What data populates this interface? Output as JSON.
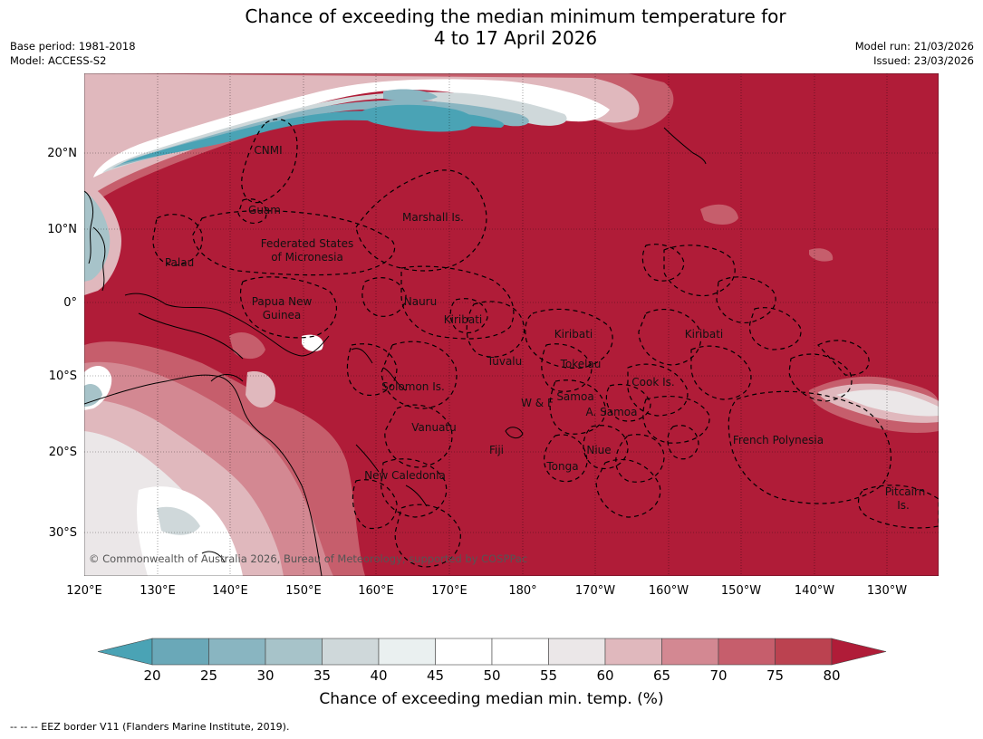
{
  "title_line1": "Chance of exceeding the median minimum temperature for",
  "title_line2": "4 to 17 April 2026",
  "base_period": "Base period: 1981-2018",
  "model": "Model: ACCESS-S2",
  "model_run": "Model run: 21/03/2026",
  "issued": "Issued: 23/03/2026",
  "copyright": "© Commonwealth of Australia 2026, Bureau of Meteorology, supported by COSPPac",
  "lat_labels": [
    "20°N",
    "10°N",
    "0°",
    "10°S",
    "20°S",
    "30°S"
  ],
  "lon_labels": [
    "120°E",
    "130°E",
    "140°E",
    "150°E",
    "160°E",
    "170°E",
    "180°",
    "170°W",
    "160°W",
    "150°W",
    "140°W",
    "130°W"
  ],
  "regions": [
    {
      "id": "cnmi",
      "label": "CNMI"
    },
    {
      "id": "guam",
      "label": "Guam"
    },
    {
      "id": "marshall",
      "label": "Marshall Is."
    },
    {
      "id": "fsm1",
      "label": "Federated States"
    },
    {
      "id": "fsm2",
      "label": "of Micronesia"
    },
    {
      "id": "palau",
      "label": "Palau"
    },
    {
      "id": "png1",
      "label": "Papua New"
    },
    {
      "id": "png2",
      "label": "Guinea"
    },
    {
      "id": "nauru",
      "label": "Nauru"
    },
    {
      "id": "kiribati1",
      "label": "Kiribati"
    },
    {
      "id": "kiribati2",
      "label": "Kiribati"
    },
    {
      "id": "kiribati3",
      "label": "Kiribati"
    },
    {
      "id": "tuvalu",
      "label": "Tuvalu"
    },
    {
      "id": "tokelau",
      "label": "Tokelau"
    },
    {
      "id": "cook",
      "label": "Cook Is."
    },
    {
      "id": "solomon",
      "label": "Solomon Is."
    },
    {
      "id": "wf",
      "label": "W & F"
    },
    {
      "id": "samoa",
      "label": "Samoa"
    },
    {
      "id": "asamoa",
      "label": "A. Samoa"
    },
    {
      "id": "vanuatu",
      "label": "Vanuatu"
    },
    {
      "id": "fiji",
      "label": "Fiji"
    },
    {
      "id": "niue",
      "label": "Niue"
    },
    {
      "id": "frpoly",
      "label": "French Polynesia"
    },
    {
      "id": "tonga",
      "label": "Tonga"
    },
    {
      "id": "newcal",
      "label": "New Caledonia"
    },
    {
      "id": "pitcairn1",
      "label": "Pitcairn"
    },
    {
      "id": "pitcairn2",
      "label": "Is."
    }
  ],
  "legend": {
    "ticks": [
      "20",
      "25",
      "30",
      "35",
      "40",
      "45",
      "50",
      "55",
      "60",
      "65",
      "70",
      "75",
      "80"
    ],
    "colors": [
      "#4aa3b5",
      "#6aa8b8",
      "#89b5c1",
      "#a7c3c9",
      "#cfd8da",
      "#eaf0f0",
      "#ffffff",
      "#ffffff",
      "#ebe7e8",
      "#e0b8bd",
      "#d38892",
      "#c65e6c",
      "#bb4250",
      "#b01c38"
    ],
    "label": "Chance of exceeding median min. temp. (%)"
  },
  "footnote": "--  --  -- EEZ border V11 (Flanders Marine Institute, 2019)."
}
